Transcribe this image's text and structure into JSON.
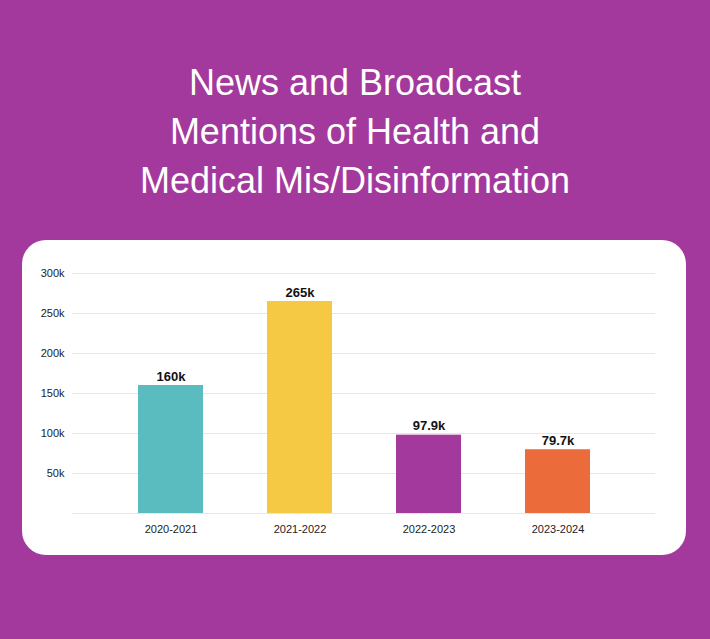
{
  "chart_data": {
    "type": "bar",
    "title": "News and Broadcast Mentions of Health and Medical Mis/Disinformation",
    "categories": [
      "2020-2021",
      "2021-2022",
      "2022-2023",
      "2023-2024"
    ],
    "values": [
      160000,
      265000,
      97900,
      79700
    ],
    "value_labels": [
      "160k",
      "265k",
      "97.9k",
      "79.7k"
    ],
    "colors": [
      "#5bbcbf",
      "#f6c945",
      "#a3399c",
      "#ec6b3b"
    ],
    "ylim": [
      0,
      300000
    ],
    "yticks": [
      {
        "value": 50000,
        "label": "50k"
      },
      {
        "value": 100000,
        "label": "100k"
      },
      {
        "value": 150000,
        "label": "150k"
      },
      {
        "value": 200000,
        "label": "200k"
      },
      {
        "value": 250000,
        "label": "250k"
      },
      {
        "value": 300000,
        "label": "300k"
      }
    ],
    "grid": true,
    "data_labels": true
  }
}
